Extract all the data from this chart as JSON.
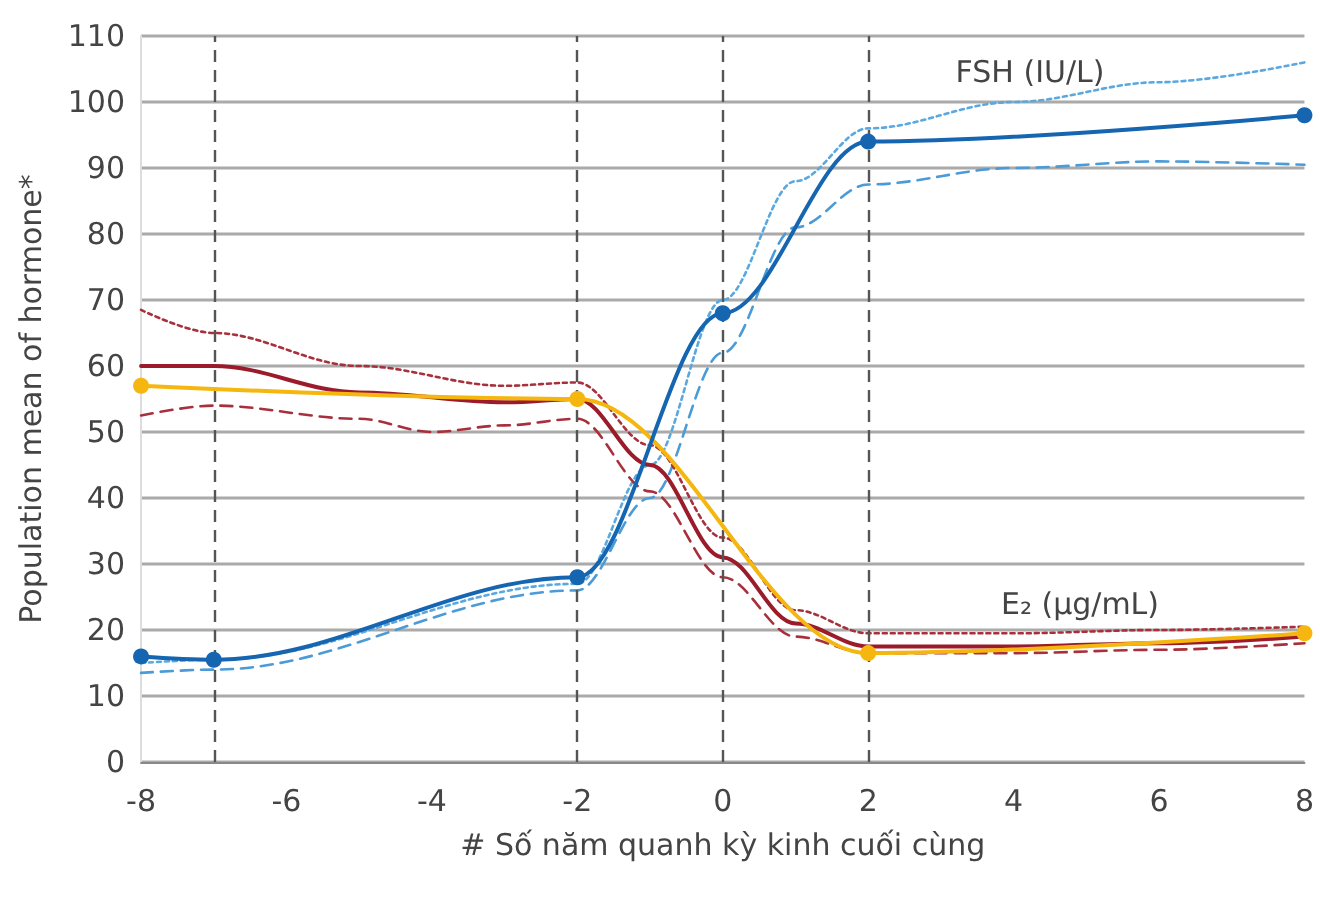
{
  "chart_data": {
    "type": "line",
    "xlabel": "# Số năm quanh kỳ kinh cuối cùng",
    "ylabel": "Population mean of hormone*",
    "xlim": [
      -8,
      8
    ],
    "xticks": [
      -8,
      -6,
      -4,
      -2,
      0,
      2,
      4,
      6,
      8
    ],
    "ylim": [
      0,
      110
    ],
    "yticks": [
      0,
      10,
      20,
      30,
      40,
      50,
      60,
      70,
      80,
      90,
      100,
      110
    ],
    "grid": "y",
    "legend": false,
    "series": [
      {
        "color": "#5aa8e0",
        "line_style": "dotted",
        "marker": "none",
        "x": [
          -8,
          -7,
          -2,
          -1,
          0,
          1,
          2,
          4,
          6,
          8
        ],
        "values": [
          15,
          15.5,
          27,
          45,
          70,
          88,
          96,
          100,
          103,
          106
        ]
      },
      {
        "color": "#4a9bd8",
        "line_style": "dashed",
        "marker": "none",
        "x": [
          -8,
          -7,
          -2,
          -1,
          0,
          1,
          2,
          4,
          6,
          8
        ],
        "values": [
          13.5,
          14,
          26,
          40,
          62,
          81,
          87.5,
          90,
          91,
          90.5
        ]
      },
      {
        "color": "#a8303c",
        "line_style": "dotted",
        "marker": "none",
        "x": [
          -8,
          -7,
          -5,
          -3,
          -2,
          -1,
          0,
          1,
          2,
          4,
          6,
          8
        ],
        "values": [
          68.5,
          65,
          60,
          57,
          57.5,
          48,
          34,
          23,
          19.5,
          19.5,
          20,
          20.5
        ]
      },
      {
        "color": "#a8303c",
        "line_style": "dashed",
        "marker": "none",
        "x": [
          -8,
          -7,
          -5,
          -4,
          -3,
          -2,
          -1,
          0,
          1,
          2,
          4,
          6,
          8
        ],
        "values": [
          52.5,
          54,
          52,
          50,
          51,
          52,
          41,
          28,
          19,
          16.5,
          16.5,
          17,
          18
        ]
      },
      {
        "color": "#9b1b2a",
        "line_style": "solid",
        "marker": "none",
        "x": [
          -8,
          -7,
          -5,
          -3,
          -2,
          -1,
          0,
          1,
          2,
          4,
          6,
          8
        ],
        "values": [
          60,
          60,
          56,
          54.5,
          55,
          45,
          31,
          21,
          17.5,
          17.5,
          18,
          19
        ]
      },
      {
        "color": "#f5b70f",
        "line_style": "solid",
        "marker": "circle",
        "x": [
          -8,
          -2,
          2,
          8
        ],
        "values": [
          57,
          55,
          16.5,
          19.5
        ]
      },
      {
        "color": "#1565b0",
        "line_style": "solid",
        "marker": "circle",
        "x": [
          -8,
          -7,
          -2,
          0,
          2,
          8
        ],
        "values": [
          16,
          15.5,
          28,
          68,
          94,
          98
        ]
      }
    ],
    "ref_lines": [
      {
        "axis": "x",
        "value": -7,
        "color": "#555555",
        "line_style": "dashed"
      },
      {
        "axis": "x",
        "value": -2,
        "color": "#555555",
        "line_style": "dashed"
      },
      {
        "axis": "x",
        "value": 0,
        "color": "#555555",
        "line_style": "dashed"
      },
      {
        "axis": "x",
        "value": 2,
        "color": "#555555",
        "line_style": "dashed"
      }
    ],
    "annotations": [
      "FSH (IU/L)",
      "E₂ (μg/mL)"
    ]
  }
}
